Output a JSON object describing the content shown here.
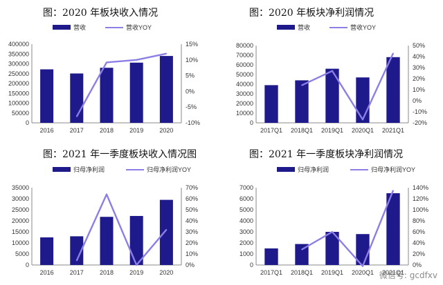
{
  "watermark": "微信号: gcdfxv",
  "chart_data": [
    {
      "type": "bar",
      "title": "图：2020 年板块收入情况",
      "categories": [
        "2016",
        "2017",
        "2018",
        "2019",
        "2020"
      ],
      "series": [
        {
          "name": "营收",
          "type": "bar",
          "axis": "left",
          "values": [
            272000,
            251000,
            280000,
            306000,
            340000
          ]
        },
        {
          "name": "营收YOY",
          "type": "line",
          "axis": "right",
          "values": [
            null,
            -8,
            9.2,
            10,
            12
          ]
        }
      ],
      "ylim": [
        0,
        400000
      ],
      "yticks": [
        0,
        50000,
        100000,
        150000,
        200000,
        250000,
        300000,
        350000,
        400000
      ],
      "y2lim": [
        -10,
        15
      ],
      "y2ticks": [
        "-10%",
        "-5%",
        "0%",
        "5%",
        "10%",
        "15%"
      ],
      "legend": "top",
      "colors": {
        "bar": "#1f1a8c",
        "line": "#8b7ee6"
      }
    },
    {
      "type": "bar",
      "title": "图：2020 年板块净利润情况",
      "categories": [
        "2017Q1",
        "2018Q1",
        "2019Q1",
        "2020Q1",
        "2021Q1"
      ],
      "series": [
        {
          "name": "营收",
          "type": "bar",
          "axis": "left",
          "values": [
            39000,
            44000,
            56000,
            47000,
            68000
          ]
        },
        {
          "name": "营收YOY",
          "type": "line",
          "axis": "right",
          "values": [
            null,
            14,
            27,
            -17,
            43
          ]
        }
      ],
      "ylim": [
        0,
        80000
      ],
      "yticks": [
        0,
        10000,
        20000,
        30000,
        40000,
        50000,
        60000,
        70000,
        80000
      ],
      "y2lim": [
        -20,
        50
      ],
      "y2ticks": [
        "-20%",
        "-10%",
        "0%",
        "10%",
        "20%",
        "30%",
        "40%",
        "50%"
      ],
      "legend": "top",
      "colors": {
        "bar": "#1f1a8c",
        "line": "#8b7ee6"
      }
    },
    {
      "type": "bar",
      "title": "图：2021 年一季度板块收入情况图",
      "categories": [
        "2016",
        "2017",
        "2018",
        "2019",
        "2020"
      ],
      "series": [
        {
          "name": "归母净利润",
          "type": "bar",
          "axis": "left",
          "values": [
            12500,
            13000,
            21800,
            22200,
            29500
          ]
        },
        {
          "name": "归母净利润YOY",
          "type": "line",
          "axis": "right",
          "values": [
            null,
            4,
            64,
            0,
            32
          ]
        }
      ],
      "ylim": [
        0,
        35000
      ],
      "yticks": [
        0,
        5000,
        10000,
        15000,
        20000,
        25000,
        30000,
        35000
      ],
      "y2lim": [
        0,
        70
      ],
      "y2ticks": [
        "0%",
        "10%",
        "20%",
        "30%",
        "40%",
        "50%",
        "60%",
        "70%"
      ],
      "legend": "top",
      "colors": {
        "bar": "#1f1a8c",
        "line": "#8b7ee6"
      }
    },
    {
      "type": "bar",
      "title": "图：2021 年一季度板块净利润情况",
      "categories": [
        "2017Q1",
        "2018Q1",
        "2019Q1",
        "2020Q1",
        "2021Q1"
      ],
      "series": [
        {
          "name": "归母净利润",
          "type": "bar",
          "axis": "left",
          "values": [
            1500,
            1900,
            3000,
            2800,
            6500
          ]
        },
        {
          "name": "归母净利润YOY",
          "type": "line",
          "axis": "right",
          "values": [
            null,
            28,
            60,
            -2,
            135
          ]
        }
      ],
      "ylim": [
        0,
        7000
      ],
      "yticks": [
        0,
        1000,
        2000,
        3000,
        4000,
        5000,
        6000,
        7000
      ],
      "y2lim": [
        0,
        140
      ],
      "y2ticks": [
        "0%",
        "20%",
        "40%",
        "60%",
        "80%",
        "100%",
        "120%",
        "140%"
      ],
      "legend": "top",
      "colors": {
        "bar": "#1f1a8c",
        "line": "#8b7ee6"
      }
    }
  ]
}
